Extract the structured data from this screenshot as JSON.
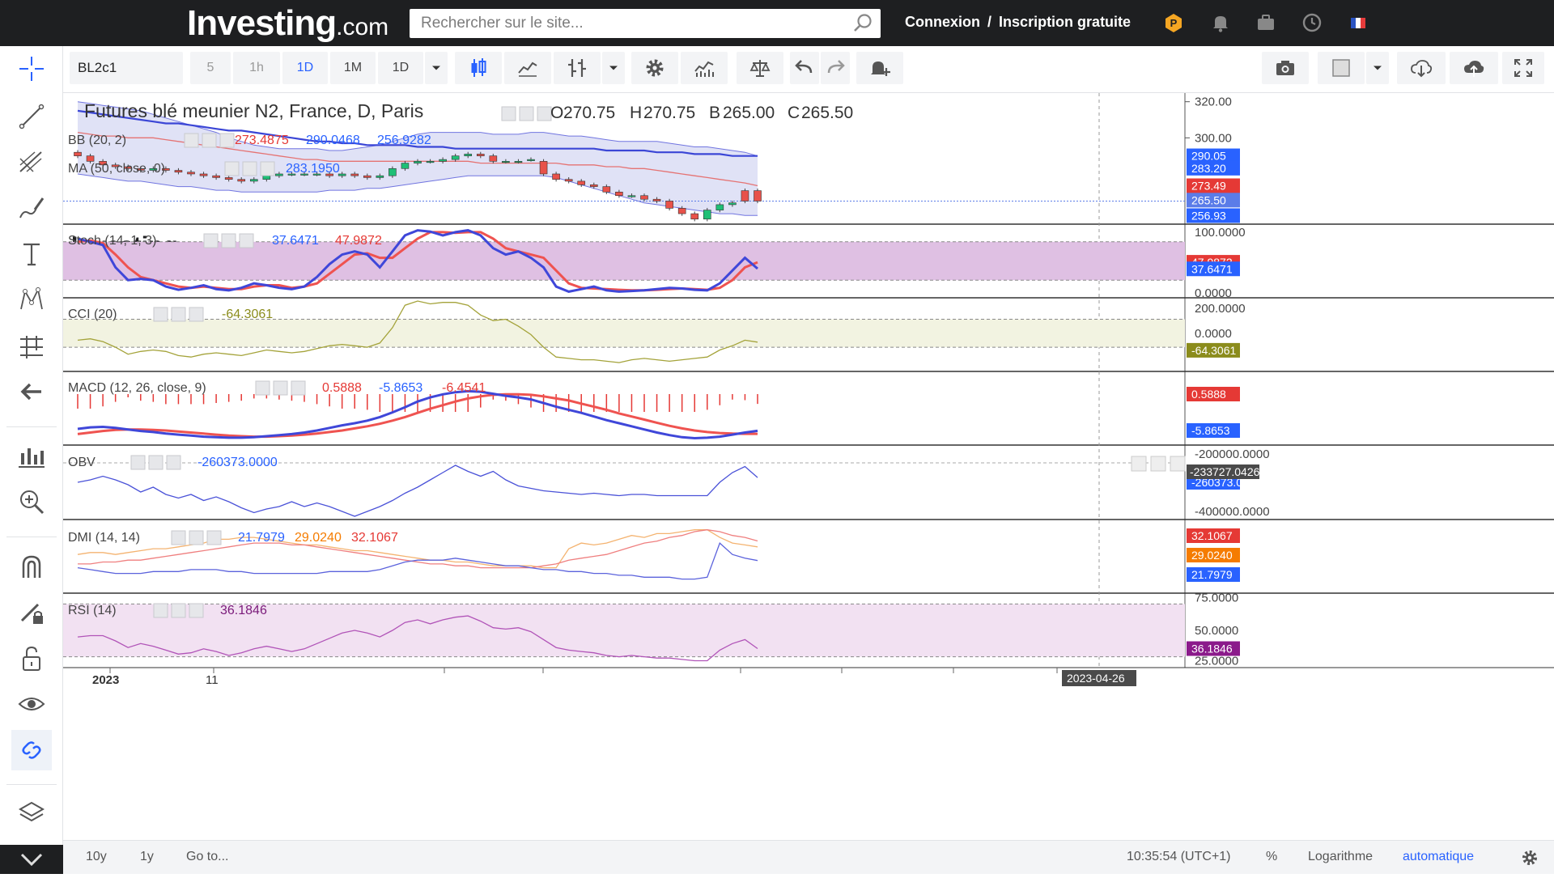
{
  "header": {
    "logo_main": "Investing",
    "logo_suffix": ".com",
    "search_placeholder": "Rechercher sur le site...",
    "login": "Connexion",
    "separator": "/",
    "signup": "Inscription gratuite"
  },
  "toolbar": {
    "symbol": "BL2c1",
    "intervals": [
      "5",
      "1h",
      "1D",
      "1M",
      "1D"
    ],
    "active_interval_index": 2
  },
  "watermark": {
    "main": "Investing",
    "suffix": ".com"
  },
  "bottombar": {
    "range_10y": "10y",
    "range_1y": "1y",
    "goto": "Go to...",
    "time": "10:35:54 (UTC+1)",
    "percent": "%",
    "log": "Logarithme",
    "auto": "automatique"
  },
  "colors": {
    "up": "#1fbf76",
    "down": "#e8524a",
    "bb_fill": "#d5d8f3",
    "bb_line": "#7175e0",
    "ma_red": "#e57373",
    "ma_blue": "#3b46d6",
    "stoch_fill": "#dfc0e3",
    "cci_fill": "#f2f3e1",
    "rsi_fill": "#f2e1f2"
  },
  "chart_data": [
    {
      "type": "candlestick",
      "title": "Futures blé meunier N2, France, D, Paris",
      "ohlc_labels": {
        "o": "O",
        "h": "H",
        "b": "B",
        "c": "C"
      },
      "ohlc": {
        "open": "270.75",
        "high": "270.75",
        "low": "265.00",
        "close": "265.50"
      },
      "indicator_bb": {
        "label": "BB (20, 2)",
        "values": [
          "273.4875",
          "290.0468",
          "256.9282"
        ]
      },
      "indicator_ma": {
        "label": "MA (50, close, 0)",
        "values": [
          "283.1950"
        ]
      },
      "price_axis": {
        "ticks": [
          320,
          300
        ],
        "tick_labels": [
          "320.00",
          "300.00"
        ],
        "ylim": [
          260,
          323
        ]
      },
      "price_badges": [
        {
          "value": 290.05,
          "label": "290.05",
          "color": "#2962ff"
        },
        {
          "value": 283.2,
          "label": "283.20",
          "color": "#2962ff"
        },
        {
          "value": 273.49,
          "label": "273.49",
          "color": "#e53935"
        },
        {
          "value": 265.5,
          "label": "265.50",
          "color": "#5b7ce8"
        },
        {
          "value": 256.93,
          "label": "256.93",
          "color": "#2962ff"
        }
      ],
      "close": [
        290,
        287,
        285,
        284,
        283,
        282,
        283,
        282,
        281,
        280,
        279,
        278,
        277,
        276,
        277,
        279,
        280,
        280,
        280,
        280,
        279,
        280,
        279,
        278,
        279,
        283,
        286,
        287,
        287,
        288,
        290,
        291,
        290,
        287,
        287,
        287,
        288,
        280,
        277,
        276,
        274,
        273,
        270,
        268,
        268,
        266,
        265,
        261,
        258,
        255,
        260,
        263,
        264,
        265,
        265
      ],
      "open": [
        292,
        290,
        287,
        285,
        284,
        283,
        282,
        283,
        282,
        281,
        280,
        279,
        278,
        277,
        276,
        277,
        279,
        280,
        280,
        280,
        280,
        279,
        280,
        279,
        278,
        279,
        283,
        286,
        287,
        287,
        288,
        290,
        291,
        290,
        287,
        287,
        288,
        287,
        280,
        277,
        276,
        274,
        273,
        270,
        268,
        268,
        266,
        265,
        261,
        258,
        255,
        260,
        263,
        270.75,
        270.75
      ],
      "bb_upper": [
        320,
        319,
        318,
        317,
        316,
        315,
        313,
        311,
        309,
        307,
        305,
        303,
        300,
        298,
        296,
        295,
        294,
        294,
        294,
        294,
        293,
        293,
        294,
        295,
        296,
        298,
        300,
        302,
        303,
        303,
        303,
        303,
        303,
        302,
        302,
        302,
        303,
        303,
        302,
        301,
        301,
        300,
        299,
        298,
        298,
        298,
        298,
        297,
        296,
        295,
        295,
        294,
        293,
        292,
        290
      ],
      "bb_lower": [
        280,
        279,
        278,
        277,
        276,
        276,
        275,
        274,
        273,
        273,
        272,
        271,
        271,
        270,
        270,
        270,
        270,
        270,
        270,
        270,
        271,
        271,
        271,
        272,
        272,
        273,
        274,
        275,
        276,
        277,
        278,
        279,
        279,
        279,
        279,
        279,
        279,
        279,
        278,
        276,
        274,
        272,
        270,
        268,
        266,
        264,
        263,
        262,
        261,
        260,
        259,
        258,
        258,
        257,
        257
      ],
      "ma_red": [
        303,
        302,
        301,
        301,
        300,
        300,
        300,
        299,
        298,
        297,
        296,
        295,
        294,
        293,
        292,
        291,
        290,
        289,
        288,
        288,
        287,
        287,
        287,
        287,
        287,
        287,
        287,
        287,
        287,
        287,
        287,
        287,
        286,
        286,
        286,
        286,
        286,
        286,
        286,
        285,
        285,
        285,
        284,
        284,
        283,
        283,
        282,
        281,
        280,
        279,
        278,
        277,
        276,
        275,
        273.5
      ],
      "ma_blue": [
        315,
        314,
        313,
        312,
        311,
        310,
        309,
        308,
        308,
        307,
        306,
        305,
        304,
        304,
        303,
        302,
        301,
        300,
        299,
        298,
        298,
        297,
        297,
        296,
        296,
        296,
        296,
        295,
        295,
        295,
        294,
        294,
        294,
        294,
        294,
        294,
        294,
        294,
        294,
        294,
        294,
        294,
        293,
        293,
        293,
        293,
        292,
        292,
        292,
        291,
        291,
        291,
        290,
        290,
        290
      ]
    },
    {
      "type": "line",
      "label": "Stoch (14, 1, 3)",
      "values_labels": [
        "37.6471",
        "47.9872"
      ],
      "axis_labels": [
        "100.0000",
        "0.0000"
      ],
      "ylim": [
        0,
        100
      ],
      "badges": [
        {
          "label": "47.9872",
          "value": 47.99,
          "color": "#e53935"
        },
        {
          "label": "37.6471",
          "value": 37.65,
          "color": "#2962ff"
        }
      ],
      "k": [
        85,
        80,
        75,
        40,
        20,
        22,
        20,
        10,
        5,
        8,
        12,
        6,
        4,
        8,
        15,
        12,
        8,
        6,
        10,
        25,
        45,
        60,
        65,
        60,
        40,
        65,
        90,
        98,
        96,
        90,
        95,
        98,
        90,
        70,
        60,
        65,
        55,
        40,
        10,
        2,
        6,
        10,
        4,
        2,
        3,
        4,
        6,
        8,
        7,
        5,
        4,
        15,
        35,
        55,
        38
      ],
      "d": [
        80,
        82,
        78,
        60,
        40,
        25,
        20,
        15,
        10,
        8,
        10,
        8,
        6,
        6,
        10,
        12,
        12,
        8,
        10,
        15,
        30,
        45,
        60,
        62,
        55,
        55,
        70,
        85,
        95,
        95,
        94,
        95,
        95,
        85,
        70,
        65,
        60,
        55,
        35,
        15,
        8,
        7,
        6,
        5,
        4,
        4,
        5,
        6,
        7,
        6,
        5,
        8,
        20,
        40,
        48
      ]
    },
    {
      "type": "line",
      "label": "CCI (20)",
      "values_labels": [
        "-64.3061"
      ],
      "axis_labels": [
        "200.0000",
        "0.0000"
      ],
      "ylim": [
        -250,
        230
      ],
      "badges": [
        {
          "label": "-64.3061",
          "value": -64.31,
          "color": "#8b8c1c"
        }
      ],
      "values": [
        -50,
        -40,
        -60,
        -100,
        -150,
        -130,
        -120,
        -130,
        -160,
        -170,
        -150,
        -140,
        -150,
        -160,
        -140,
        -120,
        -130,
        -140,
        -130,
        -110,
        -90,
        -80,
        -90,
        -100,
        -70,
        40,
        200,
        230,
        210,
        220,
        220,
        200,
        130,
        90,
        100,
        50,
        -10,
        -100,
        -170,
        -180,
        -190,
        -190,
        -200,
        -210,
        -190,
        -180,
        -190,
        -200,
        -190,
        -180,
        -170,
        -120,
        -90,
        -50,
        -64
      ]
    },
    {
      "type": "line",
      "label": "MACD (12, 26, close, 9)",
      "values_labels": [
        "0.5888",
        "-5.8653",
        "-6.4541"
      ],
      "badges": [
        {
          "label": "0.5888",
          "value": 0.59,
          "color": "#e53935"
        },
        {
          "label": "-5.8653",
          "value": -5.87,
          "color": "#2962ff"
        }
      ],
      "ylim": [
        -8,
        5
      ],
      "macd": [
        -5.5,
        -5.2,
        -5.1,
        -5.3,
        -5.6,
        -5.9,
        -6.1,
        -6.4,
        -6.6,
        -6.8,
        -7.0,
        -7.1,
        -7.2,
        -7.2,
        -7.1,
        -6.9,
        -6.7,
        -6.5,
        -6.2,
        -5.8,
        -5.3,
        -4.8,
        -4.4,
        -3.9,
        -3.2,
        -2.3,
        -1.3,
        -0.2,
        0.6,
        1.2,
        1.6,
        1.8,
        1.7,
        1.3,
        0.9,
        0.6,
        0.2,
        -0.5,
        -1.2,
        -1.8,
        -2.4,
        -3.1,
        -3.8,
        -4.4,
        -5.0,
        -5.6,
        -6.2,
        -6.7,
        -7.1,
        -7.3,
        -7.2,
        -7.0,
        -6.6,
        -6.2,
        -5.87
      ],
      "signal": [
        -6.5,
        -6.2,
        -5.9,
        -5.7,
        -5.6,
        -5.6,
        -5.7,
        -5.8,
        -6.0,
        -6.2,
        -6.4,
        -6.6,
        -6.8,
        -6.9,
        -7.0,
        -7.0,
        -6.9,
        -6.8,
        -6.6,
        -6.4,
        -6.1,
        -5.8,
        -5.4,
        -5.0,
        -4.5,
        -3.9,
        -3.2,
        -2.4,
        -1.6,
        -0.9,
        -0.2,
        0.4,
        0.8,
        1.1,
        1.2,
        1.2,
        1.1,
        0.8,
        0.4,
        0.0,
        -0.6,
        -1.2,
        -1.8,
        -2.5,
        -3.1,
        -3.7,
        -4.3,
        -4.9,
        -5.4,
        -5.8,
        -6.1,
        -6.3,
        -6.4,
        -6.45,
        -6.45
      ]
    },
    {
      "type": "line",
      "label": "OBV",
      "values_labels": [
        "-260373.0000"
      ],
      "axis_labels": [
        "-200000.0000",
        "-400000.0000"
      ],
      "ylim": [
        -420000,
        -140000
      ],
      "badges": [
        {
          "label": "-233727.0426",
          "value": -233727,
          "color": "#4a4a4a"
        },
        {
          "label": "-260373.0000",
          "value": -260373,
          "color": "#2962ff"
        }
      ],
      "values": [
        -280000,
        -270000,
        -255000,
        -270000,
        -290000,
        -320000,
        -300000,
        -330000,
        -345000,
        -330000,
        -355000,
        -340000,
        -360000,
        -385000,
        -405000,
        -390000,
        -380000,
        -360000,
        -380000,
        -365000,
        -380000,
        -400000,
        -420000,
        -400000,
        -380000,
        -355000,
        -325000,
        -300000,
        -270000,
        -240000,
        -210000,
        -235000,
        -255000,
        -235000,
        -270000,
        -295000,
        -305000,
        -315000,
        -320000,
        -325000,
        -330000,
        -325000,
        -330000,
        -335000,
        -330000,
        -330000,
        -335000,
        -335000,
        -335000,
        -335000,
        -335000,
        -280000,
        -240000,
        -215000,
        -260373
      ]
    },
    {
      "type": "line",
      "label": "DMI (14, 14)",
      "values_labels": [
        "21.7979",
        "29.0240",
        "32.1067"
      ],
      "badges": [
        {
          "label": "32.1067",
          "value": 32.1,
          "color": "#e53935"
        },
        {
          "label": "29.0240",
          "value": 29.02,
          "color": "#f57c00"
        },
        {
          "label": "21.7979",
          "value": 21.8,
          "color": "#2962ff"
        }
      ],
      "ylim": [
        8,
        40
      ],
      "plus_di": [
        18,
        17,
        16,
        15,
        15,
        15,
        16,
        16,
        16,
        17,
        17,
        17,
        16,
        16,
        15,
        15,
        15,
        15,
        15,
        15,
        16,
        16,
        16,
        16,
        17,
        19,
        21,
        22,
        22,
        22,
        23,
        22,
        21,
        20,
        19,
        19,
        18,
        17,
        17,
        16,
        16,
        15,
        15,
        14,
        14,
        13,
        13,
        13,
        12,
        12,
        13,
        31,
        25,
        23,
        21.8
      ],
      "minus_di": [
        25,
        26,
        26,
        25,
        26,
        27,
        28,
        28,
        29,
        30,
        31,
        33,
        33,
        34,
        34,
        33,
        32,
        31,
        30,
        30,
        29,
        28,
        27,
        27,
        26,
        25,
        24,
        23,
        22,
        22,
        21,
        21,
        20,
        19,
        19,
        19,
        19,
        18,
        18,
        28,
        31,
        30,
        31,
        33,
        35,
        34,
        36,
        36,
        37,
        38,
        38,
        34,
        31,
        30,
        29
      ],
      "adx": [
        20,
        20,
        21,
        21,
        22,
        22,
        23,
        24,
        25,
        26,
        27,
        28,
        29,
        30,
        31,
        31,
        31,
        30,
        30,
        29,
        28,
        27,
        26,
        25,
        24,
        23,
        22,
        21,
        20,
        20,
        19,
        19,
        18,
        18,
        18,
        18,
        18,
        19,
        20,
        22,
        23,
        24,
        25,
        27,
        29,
        31,
        32,
        34,
        35,
        37,
        38,
        37,
        35,
        34,
        32.1
      ]
    },
    {
      "type": "line",
      "label": "RSI (14)",
      "values_labels": [
        "36.1846"
      ],
      "axis_labels": [
        "75.0000",
        "50.0000",
        "25.0000"
      ],
      "ylim": [
        23,
        77
      ],
      "badges": [
        {
          "label": "36.1846",
          "value": 36.18,
          "color": "#8b1a8b"
        }
      ],
      "values": [
        45,
        46,
        46,
        42,
        37,
        40,
        38,
        35,
        32,
        33,
        36,
        34,
        31,
        33,
        36,
        38,
        36,
        34,
        36,
        40,
        44,
        48,
        50,
        48,
        45,
        50,
        56,
        58,
        55,
        58,
        60,
        61,
        57,
        52,
        51,
        52,
        49,
        43,
        37,
        35,
        34,
        33,
        31,
        30,
        31,
        30,
        29,
        29,
        28,
        27,
        27,
        35,
        40,
        43,
        36.18
      ]
    }
  ],
  "time_axis": {
    "labels": [
      "2023",
      "11"
    ],
    "cursor_date": "2023-04-26"
  }
}
